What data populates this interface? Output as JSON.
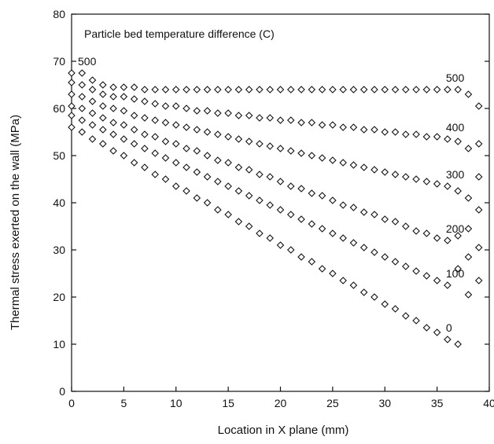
{
  "chart_data": {
    "type": "scatter",
    "title": "",
    "annotation": "Particle bed temperature difference (C)",
    "xlabel": "Location in X plane (mm)",
    "ylabel": "Thermal stress exerted on the wall (MPa)",
    "xlim": [
      0,
      40
    ],
    "ylim": [
      0,
      80
    ],
    "xticks": [
      "0",
      "5",
      "10",
      "15",
      "20",
      "25",
      "30",
      "35",
      "40"
    ],
    "yticks": [
      "0",
      "10",
      "20",
      "30",
      "40",
      "50",
      "60",
      "70",
      "80"
    ],
    "grid": false,
    "legend": "none",
    "series": [
      {
        "name": "500",
        "start_label": "500",
        "x": [
          0,
          1,
          2,
          3,
          4,
          5,
          6,
          7,
          8,
          9,
          10,
          11,
          12,
          13,
          14,
          15,
          16,
          17,
          18,
          19,
          20,
          21,
          22,
          23,
          24,
          25,
          26,
          27,
          28,
          29,
          30,
          31,
          32,
          33,
          34,
          35,
          36,
          37,
          38,
          39
        ],
        "y": [
          67.5,
          67.5,
          66.0,
          65.0,
          64.5,
          64.5,
          64.5,
          64.0,
          64.0,
          64.0,
          64.0,
          64.0,
          64.0,
          64.0,
          64.0,
          64.0,
          64.0,
          64.0,
          64.0,
          64.0,
          64.0,
          64.0,
          64.0,
          64.0,
          64.0,
          64.0,
          64.0,
          64.0,
          64.0,
          64.0,
          64.0,
          64.0,
          64.0,
          64.0,
          64.0,
          64.0,
          64.0,
          64.0,
          63.0,
          60.5
        ]
      },
      {
        "name": "400",
        "x": [
          0,
          1,
          2,
          3,
          4,
          5,
          6,
          7,
          8,
          9,
          10,
          11,
          12,
          13,
          14,
          15,
          16,
          17,
          18,
          19,
          20,
          21,
          22,
          23,
          24,
          25,
          26,
          27,
          28,
          29,
          30,
          31,
          32,
          33,
          34,
          35,
          36,
          37,
          38,
          39
        ],
        "y": [
          65.5,
          65.0,
          64.0,
          63.0,
          62.5,
          62.5,
          62.0,
          61.5,
          61.0,
          60.5,
          60.5,
          60.0,
          59.5,
          59.5,
          59.0,
          59.0,
          58.5,
          58.5,
          58.0,
          58.0,
          57.5,
          57.5,
          57.0,
          57.0,
          56.5,
          56.5,
          56.0,
          56.0,
          55.5,
          55.5,
          55.0,
          55.0,
          54.5,
          54.5,
          54.0,
          54.0,
          53.5,
          53.0,
          51.5,
          52.5
        ]
      },
      {
        "name": "300",
        "x": [
          0,
          1,
          2,
          3,
          4,
          5,
          6,
          7,
          8,
          9,
          10,
          11,
          12,
          13,
          14,
          15,
          16,
          17,
          18,
          19,
          20,
          21,
          22,
          23,
          24,
          25,
          26,
          27,
          28,
          29,
          30,
          31,
          32,
          33,
          34,
          35,
          36,
          37,
          38,
          39
        ],
        "y": [
          63.0,
          62.5,
          61.5,
          60.5,
          60.0,
          59.5,
          58.5,
          58.0,
          57.5,
          57.0,
          56.5,
          56.0,
          55.5,
          55.0,
          54.5,
          54.0,
          53.5,
          53.0,
          52.5,
          52.0,
          51.5,
          51.0,
          50.5,
          50.0,
          49.5,
          49.0,
          48.5,
          48.0,
          47.5,
          47.0,
          46.5,
          46.0,
          45.5,
          45.0,
          44.5,
          44.0,
          43.5,
          42.5,
          41.0,
          45.5
        ]
      },
      {
        "name": "200",
        "x": [
          0,
          1,
          2,
          3,
          4,
          5,
          6,
          7,
          8,
          9,
          10,
          11,
          12,
          13,
          14,
          15,
          16,
          17,
          18,
          19,
          20,
          21,
          22,
          23,
          24,
          25,
          26,
          27,
          28,
          29,
          30,
          31,
          32,
          33,
          34,
          35,
          36,
          37,
          38,
          39
        ],
        "y": [
          60.5,
          60.0,
          59.0,
          58.0,
          57.0,
          56.5,
          55.5,
          54.5,
          54.0,
          53.0,
          52.5,
          51.5,
          51.0,
          50.0,
          49.0,
          48.5,
          47.5,
          47.0,
          46.0,
          45.5,
          44.5,
          43.5,
          43.0,
          42.0,
          41.5,
          40.5,
          39.5,
          39.0,
          38.0,
          37.5,
          36.5,
          36.0,
          35.0,
          34.0,
          33.5,
          32.5,
          32.0,
          33.0,
          34.5,
          38.5
        ]
      },
      {
        "name": "100",
        "x": [
          0,
          1,
          2,
          3,
          4,
          5,
          6,
          7,
          8,
          9,
          10,
          11,
          12,
          13,
          14,
          15,
          16,
          17,
          18,
          19,
          20,
          21,
          22,
          23,
          24,
          25,
          26,
          27,
          28,
          29,
          30,
          31,
          32,
          33,
          34,
          35,
          36,
          37,
          38,
          39
        ],
        "y": [
          58.5,
          57.5,
          56.5,
          55.5,
          54.5,
          53.5,
          52.5,
          51.5,
          50.5,
          49.5,
          48.5,
          47.5,
          46.5,
          45.5,
          44.5,
          43.5,
          42.5,
          41.5,
          40.5,
          39.5,
          38.5,
          37.5,
          36.5,
          35.5,
          34.5,
          33.5,
          32.5,
          31.5,
          30.5,
          29.5,
          28.5,
          27.5,
          26.5,
          25.5,
          24.5,
          23.5,
          22.5,
          26.0,
          28.5,
          30.5
        ]
      },
      {
        "name": "0",
        "x": [
          0,
          1,
          2,
          3,
          4,
          5,
          6,
          7,
          8,
          9,
          10,
          11,
          12,
          13,
          14,
          15,
          16,
          17,
          18,
          19,
          20,
          21,
          22,
          23,
          24,
          25,
          26,
          27,
          28,
          29,
          30,
          31,
          32,
          33,
          34,
          35,
          36,
          37,
          38,
          39
        ],
        "y": [
          56.0,
          55.0,
          53.5,
          52.5,
          51.0,
          50.0,
          48.5,
          47.5,
          46.0,
          45.0,
          43.5,
          42.5,
          41.0,
          40.0,
          38.5,
          37.5,
          36.0,
          35.0,
          33.5,
          32.5,
          31.0,
          30.0,
          28.5,
          27.5,
          26.0,
          25.0,
          23.5,
          22.5,
          21.0,
          20.0,
          18.5,
          17.5,
          16.0,
          15.0,
          13.5,
          12.5,
          11.0,
          10.0,
          20.5,
          23.5
        ]
      }
    ]
  }
}
